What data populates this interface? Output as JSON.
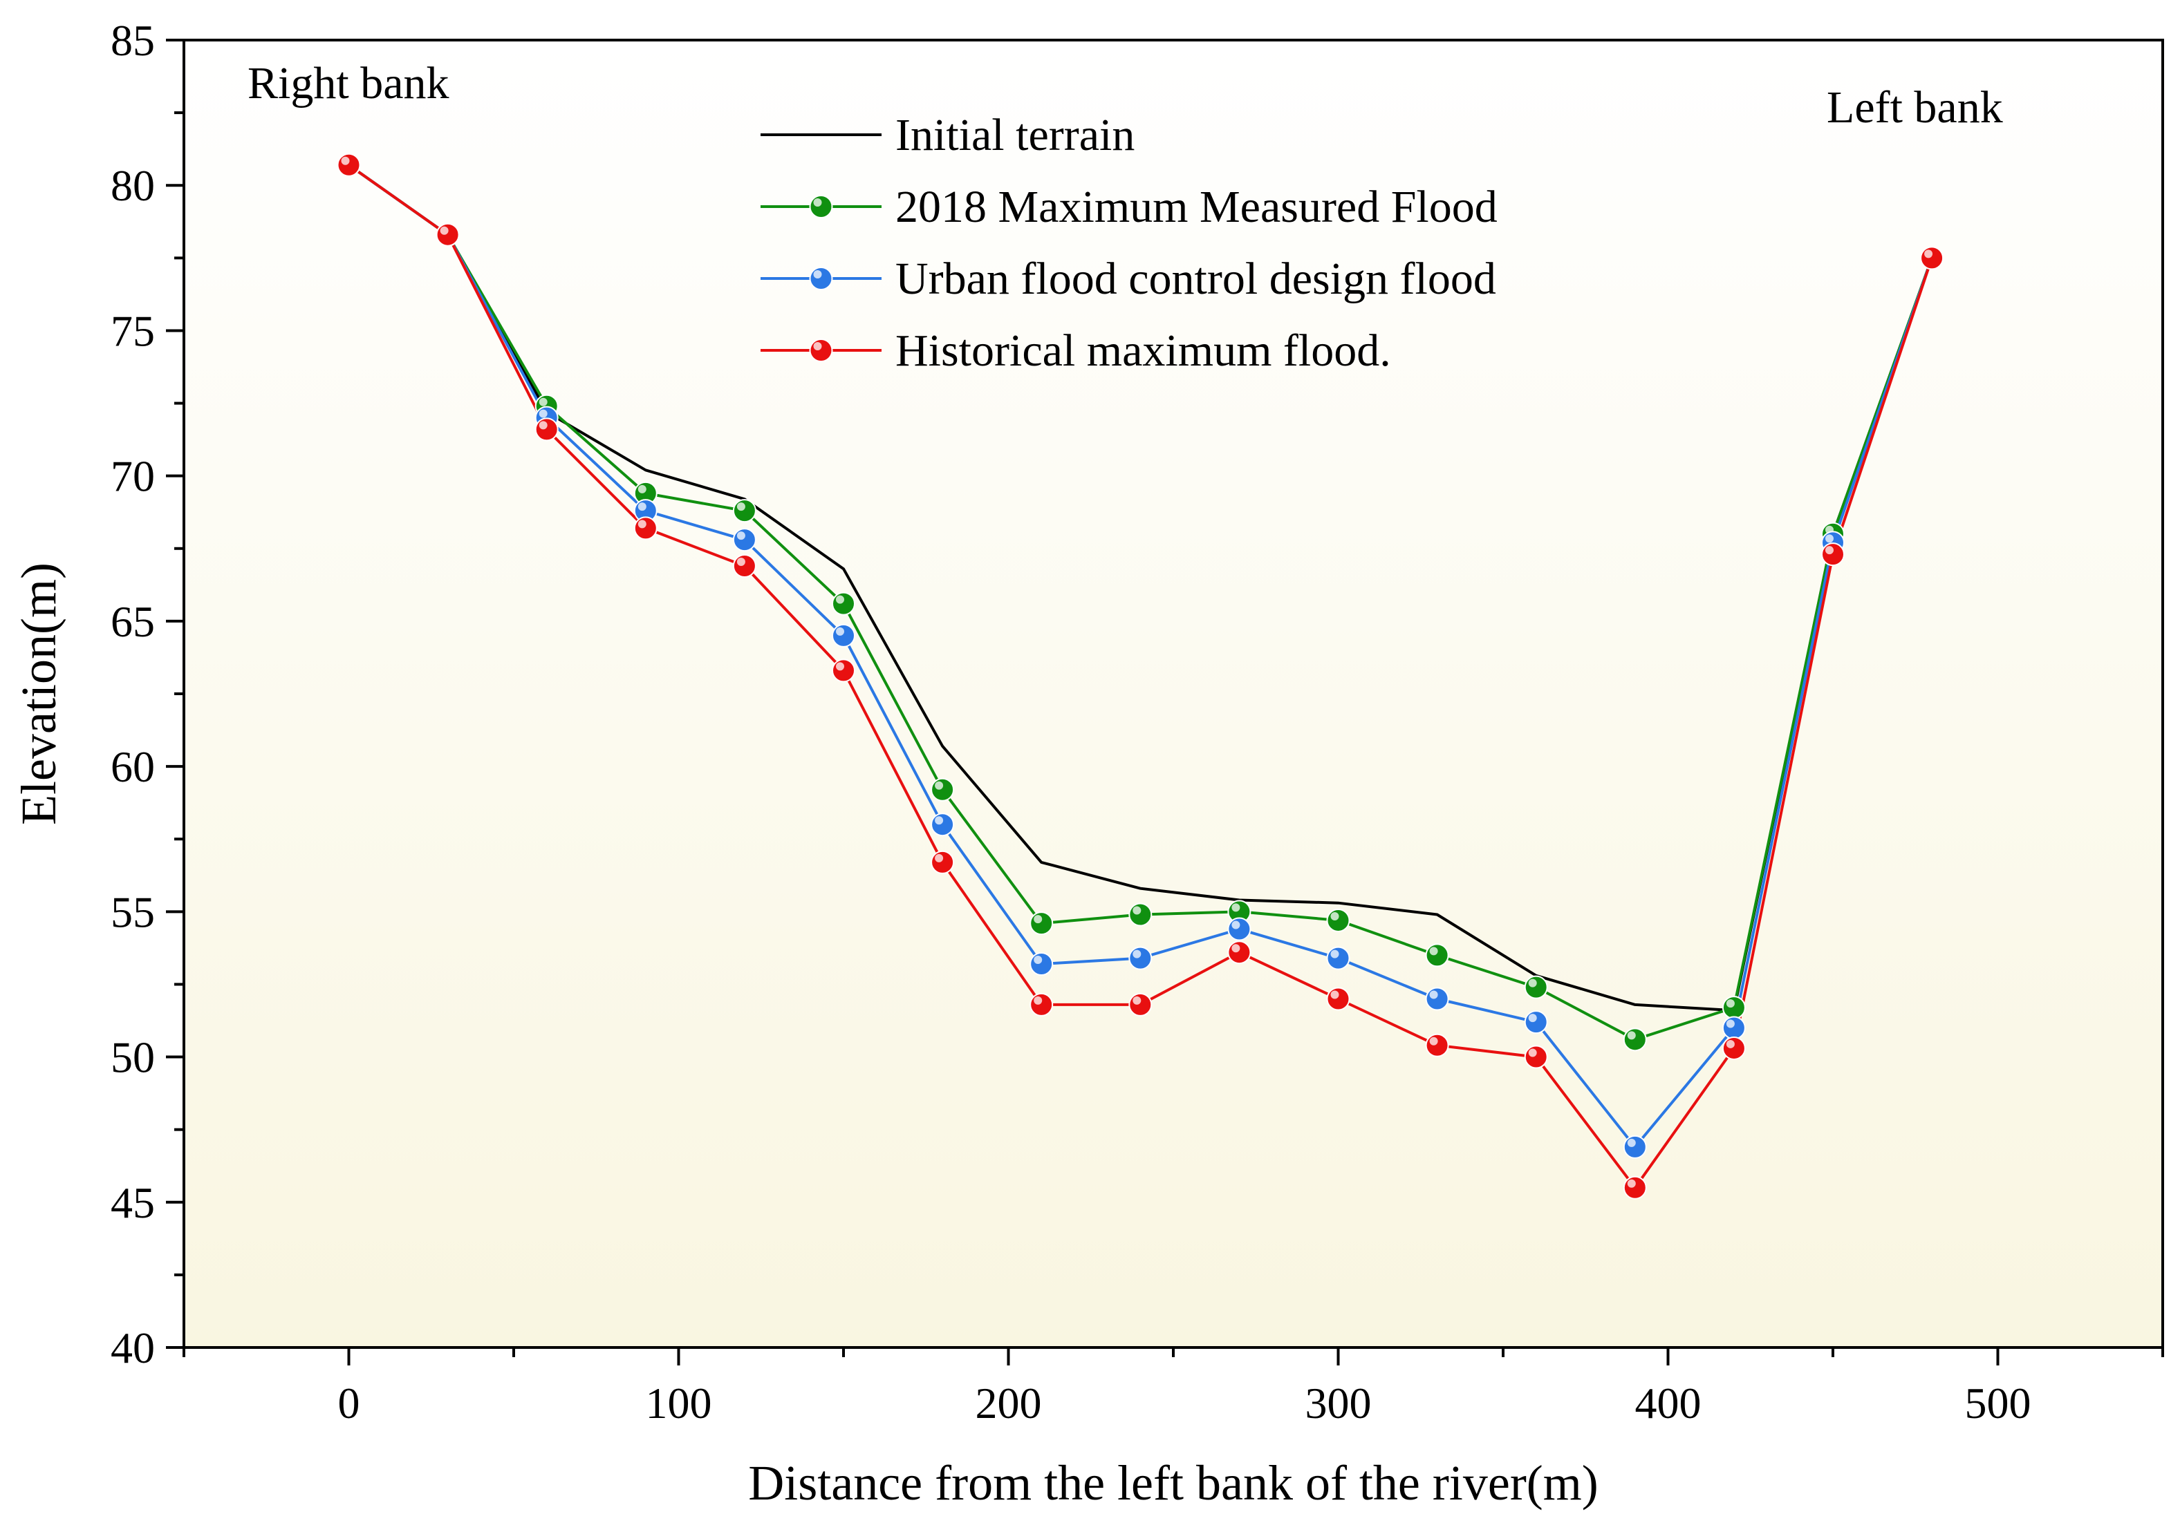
{
  "chart_data": {
    "type": "line",
    "xlabel": "Distance from the left bank of the river(m)",
    "ylabel": "Elevation(m)",
    "xlim": [
      -50,
      550
    ],
    "ylim": [
      40,
      85
    ],
    "x_ticks": [
      0,
      100,
      200,
      300,
      400,
      500
    ],
    "x_tick_labels": [
      "0",
      "100",
      "200",
      "300",
      "400",
      "500"
    ],
    "x_minor_ticks": [
      -50,
      50,
      150,
      250,
      350,
      450,
      550
    ],
    "y_ticks": [
      40,
      45,
      50,
      55,
      60,
      65,
      70,
      75,
      80,
      85
    ],
    "y_tick_labels": [
      "40",
      "45",
      "50",
      "55",
      "60",
      "65",
      "70",
      "75",
      "80",
      "85"
    ],
    "y_minor_ticks": [
      42.5,
      47.5,
      52.5,
      57.5,
      62.5,
      67.5,
      72.5,
      77.5,
      82.5
    ],
    "grid": false,
    "legend_position": "top-center",
    "annotations": {
      "right_bank": "Right bank",
      "left_bank": "Left bank"
    },
    "colors": {
      "background_top": "#ffffff",
      "background_bottom": "#f9f6e1"
    },
    "x": [
      0,
      30,
      60,
      90,
      120,
      150,
      180,
      210,
      240,
      270,
      300,
      330,
      360,
      390,
      420,
      450,
      480
    ],
    "series": [
      {
        "name": "Initial terrain",
        "color": "#000000",
        "marker": false,
        "values": [
          80.7,
          78.3,
          72.2,
          70.2,
          69.2,
          66.8,
          60.7,
          56.7,
          55.8,
          55.4,
          55.3,
          54.9,
          52.8,
          51.8,
          51.6,
          68.0,
          77.5
        ]
      },
      {
        "name": "2018 Maximum Measured Flood",
        "color": "#109010",
        "marker": true,
        "values": [
          80.7,
          78.3,
          72.4,
          69.4,
          68.8,
          65.6,
          59.2,
          54.6,
          54.9,
          55.0,
          54.7,
          53.5,
          52.4,
          50.6,
          51.7,
          68.0,
          77.5
        ]
      },
      {
        "name": "Urban flood control design flood",
        "color": "#2b78e4",
        "marker": true,
        "values": [
          80.7,
          78.3,
          72.0,
          68.8,
          67.8,
          64.5,
          58.0,
          53.2,
          53.4,
          54.4,
          53.4,
          52.0,
          51.2,
          46.9,
          51.0,
          67.7,
          77.5
        ]
      },
      {
        "name": "Historical maximum flood.",
        "color": "#e81010",
        "marker": true,
        "values": [
          80.7,
          78.3,
          71.6,
          68.2,
          66.9,
          63.3,
          56.7,
          51.8,
          51.8,
          53.6,
          52.0,
          50.4,
          50.0,
          45.5,
          50.3,
          67.3,
          77.5
        ]
      }
    ]
  }
}
